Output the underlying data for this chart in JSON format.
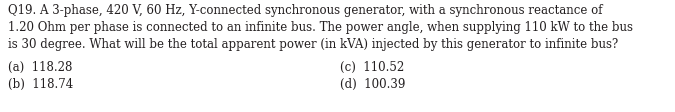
{
  "question_line1": "Q19. A 3-phase, 420 V, 60 Hz, Y-connected synchronous generator, with a synchronous reactance of",
  "question_line2": "1.20 Ohm per phase is connected to an infinite bus. The power angle, when supplying 110 kW to the bus",
  "question_line3": "is 30 degree. What will be the total apparent power (in kVA) injected by this generator to infinite bus?",
  "option_a": "(a)  118.28",
  "option_b": "(b)  118.74",
  "option_c": "(c)  110.52",
  "option_d": "(d)  100.39",
  "bg_color": "#ffffff",
  "text_color": "#231f20",
  "font_size": 8.5,
  "options_font_size": 8.5
}
